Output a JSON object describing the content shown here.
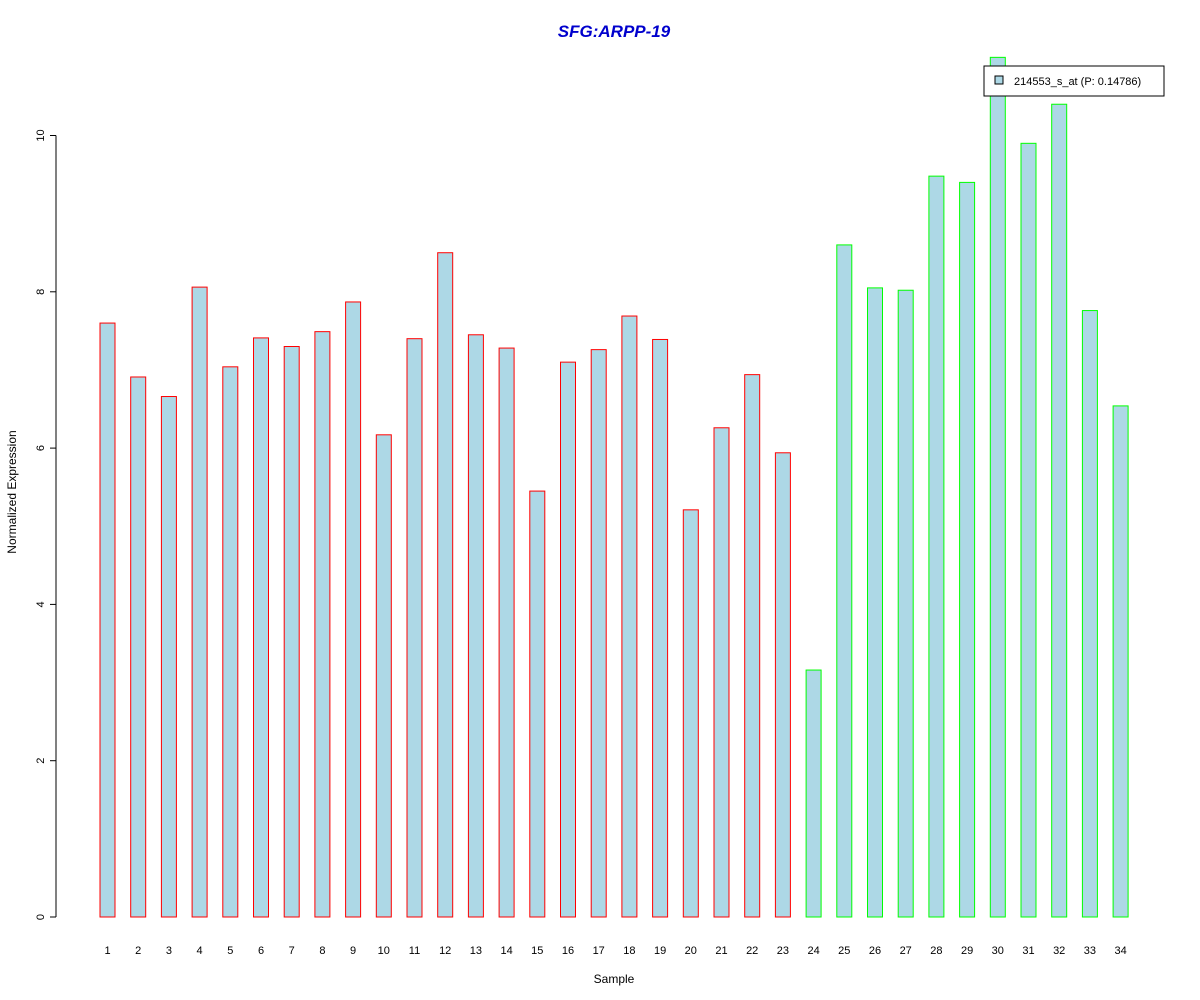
{
  "chart_data": {
    "type": "bar",
    "title": "SFG:ARPP-19",
    "xlabel": "Sample",
    "ylabel": "Normalized Expression",
    "ylim": [
      0,
      11
    ],
    "yticks": [
      0,
      2,
      4,
      6,
      8,
      10
    ],
    "grid": false,
    "legend_position": "top-right",
    "categories": [
      "1",
      "2",
      "3",
      "4",
      "5",
      "6",
      "7",
      "8",
      "9",
      "10",
      "11",
      "12",
      "13",
      "14",
      "15",
      "16",
      "17",
      "18",
      "19",
      "20",
      "21",
      "22",
      "23",
      "24",
      "25",
      "26",
      "27",
      "28",
      "29",
      "30",
      "31",
      "32",
      "33",
      "34"
    ],
    "series": [
      {
        "name": "214553_s_at (P: 0.14786)",
        "values": [
          7.6,
          6.91,
          6.66,
          8.06,
          7.04,
          7.41,
          7.3,
          7.49,
          7.87,
          6.17,
          7.4,
          8.5,
          7.45,
          7.28,
          5.45,
          7.1,
          7.26,
          7.69,
          7.39,
          5.21,
          6.26,
          6.94,
          5.94,
          3.16,
          8.6,
          8.05,
          8.02,
          9.48,
          9.4,
          11.0,
          9.9,
          10.4,
          7.76,
          6.54
        ]
      }
    ],
    "bar_groups": [
      "red",
      "red",
      "red",
      "red",
      "red",
      "red",
      "red",
      "red",
      "red",
      "red",
      "red",
      "red",
      "red",
      "red",
      "red",
      "red",
      "red",
      "red",
      "red",
      "red",
      "red",
      "red",
      "red",
      "green",
      "green",
      "green",
      "green",
      "green",
      "green",
      "green",
      "green",
      "green",
      "green",
      "green"
    ],
    "colors": {
      "bar_fill": "#ADD8E6",
      "border_red": "#FF0000",
      "border_green": "#00FF00",
      "title": "#0000CD",
      "axis": "#000000"
    }
  }
}
